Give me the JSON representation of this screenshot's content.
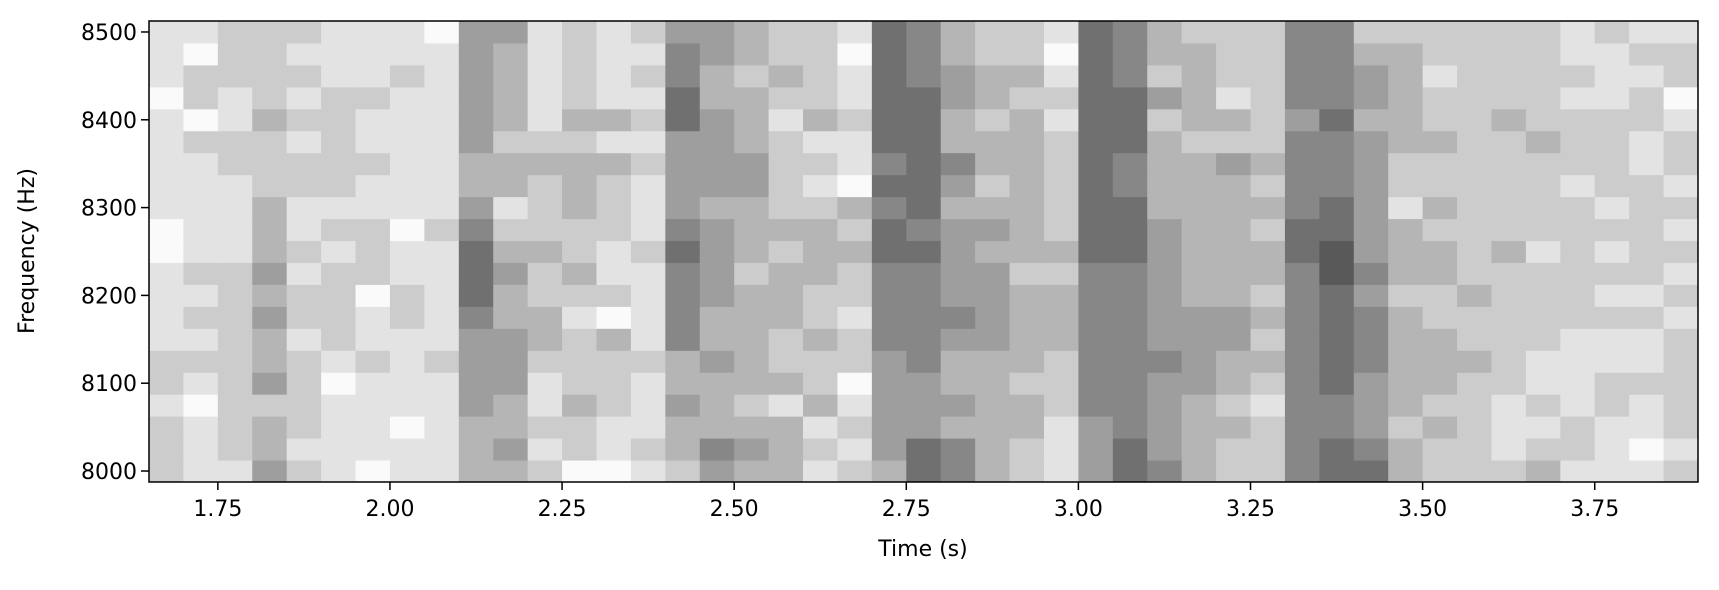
{
  "chart_data": {
    "type": "heatmap",
    "xlabel": "Time (s)",
    "ylabel": "Frequency (Hz)",
    "colormap": "Greys",
    "x": [
      1.675,
      1.725,
      1.775,
      1.825,
      1.875,
      1.925,
      1.975,
      2.025,
      2.075,
      2.125,
      2.175,
      2.225,
      2.275,
      2.325,
      2.375,
      2.425,
      2.475,
      2.525,
      2.575,
      2.625,
      2.675,
      2.725,
      2.775,
      2.825,
      2.875,
      2.925,
      2.975,
      3.025,
      3.075,
      3.125,
      3.175,
      3.225,
      3.275,
      3.325,
      3.375,
      3.425,
      3.475,
      3.525,
      3.575,
      3.625,
      3.675,
      3.725,
      3.775,
      3.825,
      3.875
    ],
    "y": [
      8000,
      8025,
      8050,
      8075,
      8100,
      8125,
      8150,
      8175,
      8200,
      8225,
      8250,
      8275,
      8300,
      8325,
      8350,
      8375,
      8400,
      8425,
      8450,
      8475,
      8500
    ],
    "z": [
      [
        2,
        1,
        1,
        4,
        2,
        1,
        0,
        1,
        1,
        3,
        3,
        2,
        0,
        0,
        1,
        2,
        4,
        3,
        3,
        1,
        2,
        3,
        6,
        5,
        3,
        2,
        1,
        4,
        6,
        5,
        3,
        2,
        2,
        5,
        6,
        6,
        3,
        2,
        2,
        2,
        3,
        1,
        1,
        1,
        2
      ],
      [
        2,
        1,
        2,
        3,
        1,
        1,
        1,
        1,
        1,
        3,
        4,
        1,
        2,
        1,
        2,
        3,
        5,
        4,
        3,
        2,
        1,
        4,
        6,
        5,
        3,
        2,
        1,
        4,
        6,
        4,
        3,
        2,
        2,
        5,
        6,
        5,
        3,
        2,
        2,
        1,
        2,
        2,
        1,
        0,
        1
      ],
      [
        2,
        1,
        2,
        3,
        2,
        1,
        1,
        0,
        1,
        3,
        3,
        2,
        2,
        1,
        1,
        3,
        3,
        3,
        3,
        1,
        2,
        4,
        4,
        3,
        3,
        3,
        1,
        4,
        5,
        4,
        3,
        3,
        2,
        5,
        5,
        4,
        2,
        3,
        2,
        1,
        1,
        2,
        1,
        1,
        2
      ],
      [
        1,
        0,
        2,
        2,
        2,
        1,
        1,
        1,
        1,
        4,
        3,
        1,
        3,
        2,
        1,
        4,
        3,
        2,
        1,
        3,
        1,
        4,
        4,
        4,
        3,
        3,
        2,
        5,
        5,
        4,
        3,
        2,
        1,
        5,
        5,
        4,
        3,
        2,
        2,
        1,
        2,
        1,
        2,
        1,
        2
      ],
      [
        2,
        1,
        2,
        4,
        2,
        0,
        1,
        1,
        1,
        4,
        4,
        1,
        2,
        2,
        1,
        3,
        3,
        3,
        3,
        2,
        0,
        4,
        4,
        3,
        3,
        2,
        2,
        5,
        5,
        4,
        4,
        3,
        2,
        5,
        6,
        4,
        3,
        3,
        2,
        2,
        1,
        1,
        2,
        2,
        2
      ],
      [
        2,
        2,
        2,
        3,
        2,
        1,
        2,
        1,
        2,
        4,
        4,
        2,
        2,
        2,
        2,
        3,
        4,
        3,
        2,
        2,
        2,
        4,
        5,
        3,
        3,
        3,
        2,
        5,
        5,
        5,
        4,
        3,
        3,
        5,
        6,
        5,
        3,
        3,
        3,
        2,
        1,
        1,
        1,
        1,
        2
      ],
      [
        1,
        1,
        2,
        3,
        1,
        2,
        1,
        1,
        1,
        4,
        4,
        3,
        2,
        3,
        1,
        5,
        3,
        3,
        2,
        3,
        2,
        5,
        5,
        4,
        4,
        3,
        3,
        5,
        5,
        4,
        4,
        4,
        2,
        5,
        6,
        5,
        3,
        3,
        2,
        2,
        2,
        1,
        1,
        1,
        2
      ],
      [
        1,
        2,
        2,
        4,
        2,
        2,
        1,
        2,
        1,
        5,
        3,
        3,
        1,
        0,
        1,
        5,
        3,
        3,
        3,
        2,
        1,
        5,
        5,
        5,
        4,
        3,
        3,
        5,
        5,
        4,
        4,
        4,
        3,
        5,
        6,
        5,
        3,
        2,
        2,
        2,
        2,
        2,
        2,
        2,
        1
      ],
      [
        1,
        1,
        2,
        3,
        2,
        2,
        0,
        2,
        1,
        6,
        3,
        2,
        2,
        2,
        1,
        5,
        4,
        3,
        3,
        2,
        2,
        5,
        5,
        4,
        4,
        3,
        3,
        5,
        5,
        4,
        3,
        3,
        2,
        5,
        6,
        4,
        2,
        2,
        3,
        2,
        2,
        2,
        1,
        1,
        2
      ],
      [
        1,
        2,
        2,
        4,
        1,
        2,
        2,
        1,
        1,
        6,
        4,
        2,
        3,
        1,
        1,
        5,
        4,
        2,
        3,
        3,
        2,
        5,
        5,
        4,
        4,
        2,
        2,
        5,
        5,
        4,
        3,
        3,
        3,
        5,
        7,
        5,
        3,
        3,
        2,
        2,
        2,
        2,
        2,
        2,
        1
      ],
      [
        0,
        1,
        1,
        3,
        2,
        1,
        2,
        1,
        1,
        6,
        3,
        3,
        2,
        1,
        2,
        6,
        4,
        3,
        2,
        3,
        3,
        6,
        6,
        4,
        3,
        3,
        3,
        6,
        6,
        4,
        3,
        3,
        3,
        6,
        7,
        4,
        3,
        3,
        2,
        3,
        1,
        2,
        1,
        2,
        2
      ],
      [
        0,
        1,
        1,
        3,
        1,
        2,
        2,
        0,
        2,
        5,
        2,
        2,
        2,
        2,
        1,
        5,
        4,
        3,
        3,
        3,
        2,
        6,
        5,
        4,
        4,
        3,
        2,
        6,
        6,
        4,
        3,
        3,
        2,
        6,
        6,
        4,
        3,
        2,
        2,
        2,
        2,
        2,
        2,
        2,
        1
      ],
      [
        1,
        1,
        1,
        3,
        1,
        1,
        1,
        1,
        1,
        4,
        1,
        2,
        3,
        2,
        1,
        4,
        3,
        3,
        2,
        2,
        3,
        5,
        6,
        3,
        3,
        3,
        2,
        6,
        6,
        3,
        3,
        3,
        3,
        5,
        6,
        4,
        1,
        3,
        2,
        2,
        2,
        2,
        1,
        2,
        2
      ],
      [
        1,
        1,
        1,
        2,
        2,
        2,
        1,
        1,
        1,
        3,
        3,
        2,
        3,
        2,
        1,
        4,
        4,
        4,
        2,
        1,
        0,
        6,
        6,
        4,
        2,
        3,
        2,
        6,
        5,
        3,
        3,
        3,
        2,
        5,
        5,
        4,
        2,
        2,
        2,
        2,
        2,
        1,
        2,
        2,
        1
      ],
      [
        1,
        1,
        2,
        2,
        2,
        2,
        2,
        1,
        1,
        3,
        3,
        3,
        3,
        3,
        2,
        4,
        4,
        4,
        2,
        2,
        1,
        5,
        6,
        5,
        3,
        3,
        2,
        6,
        5,
        3,
        3,
        4,
        3,
        5,
        5,
        4,
        2,
        2,
        2,
        2,
        2,
        2,
        2,
        1,
        2
      ],
      [
        1,
        2,
        2,
        2,
        1,
        2,
        1,
        1,
        1,
        4,
        2,
        2,
        2,
        1,
        1,
        4,
        4,
        3,
        2,
        1,
        1,
        6,
        6,
        3,
        3,
        3,
        2,
        6,
        6,
        3,
        2,
        2,
        2,
        5,
        5,
        4,
        3,
        3,
        2,
        2,
        3,
        2,
        2,
        1,
        2
      ],
      [
        1,
        0,
        1,
        3,
        2,
        2,
        1,
        1,
        1,
        4,
        3,
        1,
        3,
        3,
        2,
        6,
        4,
        3,
        1,
        3,
        2,
        6,
        6,
        3,
        2,
        3,
        1,
        6,
        6,
        2,
        3,
        3,
        2,
        4,
        6,
        3,
        3,
        2,
        2,
        3,
        2,
        2,
        2,
        2,
        1
      ],
      [
        0,
        2,
        1,
        2,
        1,
        2,
        2,
        1,
        1,
        4,
        3,
        1,
        2,
        1,
        1,
        6,
        3,
        3,
        2,
        2,
        1,
        6,
        6,
        4,
        3,
        2,
        2,
        6,
        6,
        4,
        3,
        1,
        2,
        5,
        5,
        4,
        3,
        2,
        2,
        2,
        2,
        1,
        1,
        2,
        0
      ],
      [
        1,
        2,
        2,
        2,
        2,
        1,
        1,
        2,
        1,
        4,
        3,
        1,
        2,
        1,
        2,
        5,
        3,
        2,
        3,
        2,
        1,
        6,
        5,
        4,
        3,
        3,
        1,
        6,
        5,
        2,
        3,
        2,
        2,
        5,
        5,
        4,
        3,
        1,
        2,
        2,
        2,
        2,
        1,
        1,
        2
      ],
      [
        1,
        0,
        2,
        2,
        1,
        1,
        1,
        1,
        1,
        4,
        3,
        1,
        2,
        1,
        1,
        5,
        4,
        3,
        2,
        2,
        0,
        6,
        5,
        3,
        2,
        2,
        0,
        6,
        5,
        3,
        3,
        2,
        2,
        5,
        5,
        3,
        3,
        2,
        2,
        2,
        2,
        1,
        1,
        2,
        2
      ],
      [
        1,
        1,
        2,
        2,
        2,
        1,
        1,
        1,
        0,
        4,
        4,
        1,
        2,
        1,
        2,
        4,
        4,
        3,
        2,
        2,
        1,
        6,
        5,
        3,
        2,
        2,
        1,
        6,
        5,
        3,
        2,
        2,
        2,
        5,
        5,
        2,
        2,
        2,
        2,
        2,
        2,
        1,
        2,
        1,
        1
      ]
    ],
    "xlim": [
      1.65,
      3.9
    ],
    "ylim": [
      7987.5,
      8512.5
    ],
    "xticks": [
      1.75,
      {
        "value": 2,
        "label": "2.00"
      },
      2.25,
      {
        "value": 2.5,
        "label": "2.50"
      },
      2.75,
      {
        "value": 3,
        "label": "3.00"
      },
      3.25,
      {
        "value": 3.5,
        "label": "3.50"
      },
      3.75
    ],
    "yticks": [
      8000,
      8100,
      8200,
      8300,
      8400,
      8500
    ]
  }
}
